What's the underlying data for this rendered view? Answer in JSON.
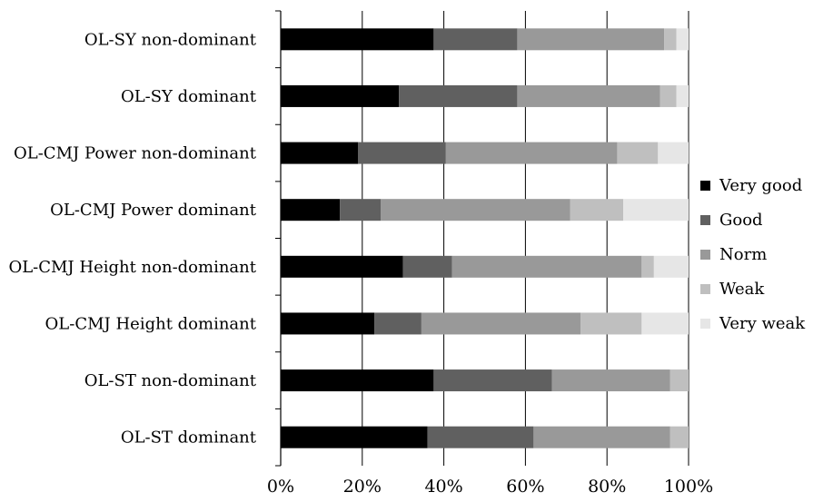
{
  "chart_data": {
    "type": "bar",
    "orientation": "horizontal",
    "stacked": "percent",
    "categories": [
      "OL-SY non-dominant",
      "OL-SY dominant",
      "OL-CMJ Power non-dominant",
      "OL-CMJ Power dominant",
      "OL-CMJ Height non-dominant",
      "OL-CMJ Height dominant",
      "OL-ST non-dominant",
      "OL-ST dominant"
    ],
    "series": [
      {
        "name": "Very good",
        "color": "#000000",
        "values": [
          37.5,
          29,
          19,
          14.5,
          30,
          23,
          37.5,
          36
        ]
      },
      {
        "name": "Good",
        "color": "#606060",
        "values": [
          20.5,
          29,
          21.5,
          10,
          12,
          11.5,
          29,
          26
        ]
      },
      {
        "name": "Norm",
        "color": "#999999",
        "values": [
          36,
          35,
          42,
          46.5,
          46.5,
          39,
          29,
          33.5
        ]
      },
      {
        "name": "Weak",
        "color": "#bfbfbf",
        "values": [
          3,
          4,
          10,
          13,
          3,
          15,
          4.5,
          4.5
        ]
      },
      {
        "name": "Very weak",
        "color": "#e6e6e6",
        "values": [
          3,
          3,
          7.5,
          16,
          8.5,
          11.5,
          0,
          0
        ]
      }
    ],
    "xlim": [
      0,
      100
    ],
    "x_ticks": [
      "0%",
      "20%",
      "40%",
      "60%",
      "80%",
      "100%"
    ],
    "grid": "vertical",
    "legend_position": "right",
    "title": "",
    "xlabel": "",
    "ylabel": ""
  }
}
